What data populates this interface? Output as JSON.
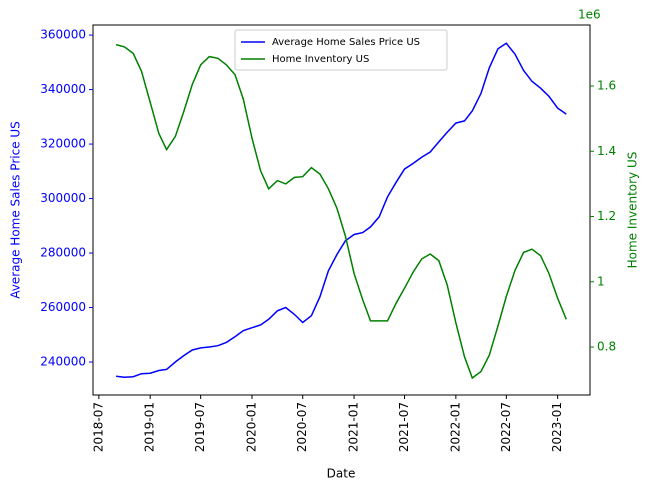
{
  "chart_data": {
    "type": "line",
    "xlabel": "Date",
    "ylabel": "Average Home Sales Price US",
    "y2label": "Home Inventory US",
    "y2_offset_label": "1e6",
    "x": [
      "2018-09",
      "2018-10",
      "2018-11",
      "2018-12",
      "2019-01",
      "2019-02",
      "2019-03",
      "2019-04",
      "2019-05",
      "2019-06",
      "2019-07",
      "2019-08",
      "2019-09",
      "2019-10",
      "2019-11",
      "2019-12",
      "2020-01",
      "2020-02",
      "2020-03",
      "2020-04",
      "2020-05",
      "2020-06",
      "2020-07",
      "2020-08",
      "2020-09",
      "2020-10",
      "2020-11",
      "2020-12",
      "2021-01",
      "2021-02",
      "2021-03",
      "2021-04",
      "2021-05",
      "2021-06",
      "2021-07",
      "2021-08",
      "2021-09",
      "2021-10",
      "2021-11",
      "2021-12",
      "2022-01",
      "2022-02",
      "2022-03",
      "2022-04",
      "2022-05",
      "2022-06",
      "2022-07",
      "2022-08",
      "2022-09",
      "2022-10",
      "2022-11",
      "2022-12",
      "2023-01",
      "2023-02"
    ],
    "series": [
      {
        "name": "Average Home Sales Price US",
        "color": "#0000ff",
        "axis": "y",
        "values": [
          234800,
          234400,
          234600,
          235700,
          235900,
          236900,
          237300,
          240000,
          242300,
          244400,
          245200,
          245500,
          246000,
          247200,
          249300,
          251500,
          252600,
          253600,
          255700,
          258800,
          260000,
          257500,
          254500,
          257000,
          264000,
          273500,
          279500,
          284500,
          286800,
          287500,
          289600,
          293300,
          300600,
          306000,
          310800,
          312900,
          315200,
          317100,
          320800,
          324300,
          327700,
          328500,
          332200,
          338600,
          348000,
          355000,
          357000,
          353000,
          347000,
          343000,
          340500,
          337500,
          333200,
          331000
        ]
      },
      {
        "name": "Home Inventory US",
        "color": "#008000",
        "axis": "y2",
        "values": [
          1.727,
          1.72,
          1.7,
          1.645,
          1.55,
          1.455,
          1.405,
          1.445,
          1.52,
          1.605,
          1.665,
          1.69,
          1.685,
          1.665,
          1.635,
          1.56,
          1.44,
          1.34,
          1.285,
          1.31,
          1.3,
          1.32,
          1.322,
          1.35,
          1.33,
          1.285,
          1.225,
          1.14,
          1.025,
          0.945,
          0.88,
          0.88,
          0.88,
          0.935,
          0.98,
          1.03,
          1.07,
          1.085,
          1.065,
          0.99,
          0.875,
          0.77,
          0.705,
          0.725,
          0.775,
          0.865,
          0.955,
          1.035,
          1.09,
          1.1,
          1.08,
          1.025,
          0.95,
          0.885
        ]
      }
    ],
    "xlim": [
      "2018-06-10",
      "2023-04-27"
    ],
    "xticks": [
      "2018-07",
      "2019-01",
      "2019-07",
      "2020-01",
      "2020-07",
      "2021-01",
      "2021-07",
      "2022-01",
      "2022-07",
      "2023-01"
    ],
    "ylim": [
      227900,
      363700
    ],
    "yticks": [
      240000,
      260000,
      280000,
      300000,
      320000,
      340000,
      360000
    ],
    "y2lim": [
      0.653,
      1.787
    ],
    "y2ticks": [
      0.8,
      1.0,
      1.2,
      1.4,
      1.6
    ],
    "legend": "upper center"
  }
}
